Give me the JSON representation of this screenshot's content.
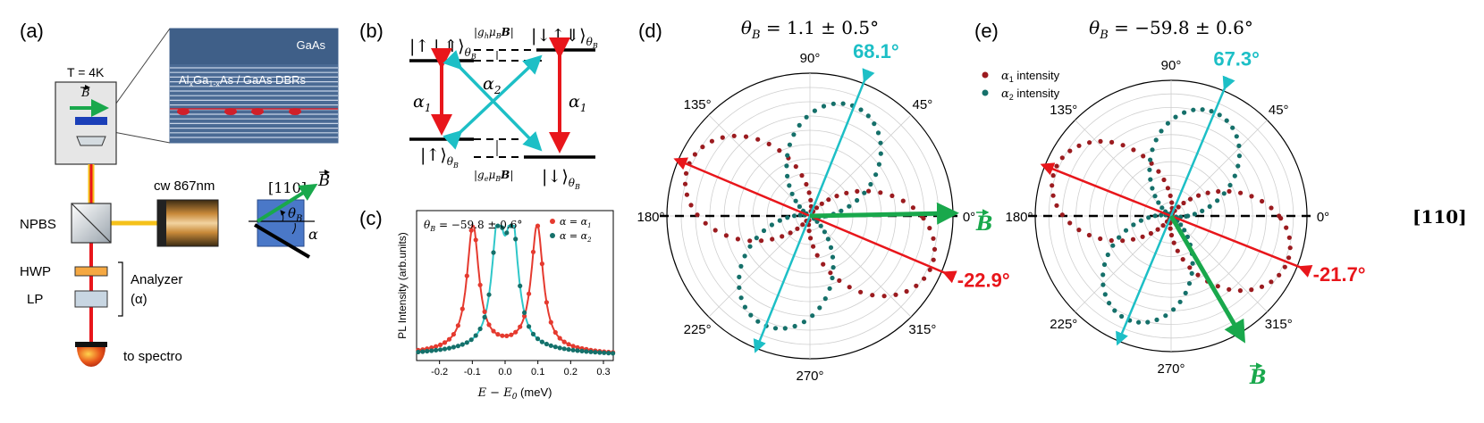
{
  "panels": {
    "a": {
      "label": "(a)",
      "temperature": "T = 4K",
      "b_vec": "B",
      "gaas": "GaAs",
      "dbr_label": "AlxGa1-xAs / GaAs DBRs",
      "dbr_al": "Al",
      "dbr_x": "x",
      "dbr_ga": "Ga",
      "dbr_sub": "1-x",
      "dbr_rest": "As / GaAs DBRs",
      "laser": "cw 867nm",
      "npbs": "NPBS",
      "hwp": "HWP",
      "lp": "LP",
      "analyzer": "Analyzer",
      "alpha_paren": "(α)",
      "spectro": "to spectro",
      "dir110": "[110]",
      "thetaB": "θ",
      "thetaB_sub": "B",
      "alpha": "α"
    },
    "b": {
      "label": "(b)",
      "state_top_left": "|↑↓⇑⟩",
      "state_top_right": "|↓↑⇓⟩",
      "state_bottom_left": "|↑⟩",
      "state_bottom_right": "|↓⟩",
      "theta_sub": "θ",
      "theta_sub_b": "B",
      "gh_label": "|g",
      "gh_sub": "h",
      "gh_rest": "μ",
      "mu_sub": "B",
      "ge_label": "|g",
      "ge_sub": "e",
      "alpha1": "α",
      "alpha1_sub": "1",
      "alpha2": "α",
      "alpha2_sub": "2"
    },
    "c": {
      "label": "(c)",
      "annotation": "θB = −59.8 ± 0.6°",
      "legend1": "α = α1",
      "legend2": "α = α2",
      "ylabel": "PL Intensity (arb.units)",
      "xlabel": "E − E0 (meV)",
      "xticks": [
        "-0.2",
        "-0.1",
        "0.0",
        "0.1",
        "0.2",
        "0.3"
      ]
    },
    "d": {
      "label": "(d)",
      "title": "θB = 1.1 ± 0.5°",
      "angle_cyan": "68.1°",
      "angle_red": "-22.9°",
      "b_label": "B",
      "legend1": "α1 intensity",
      "legend2": "α2 intensity"
    },
    "e": {
      "label": "(e)",
      "title": "θB = −59.8 ± 0.6°",
      "angle_cyan": "67.3°",
      "angle_red": "-21.7°",
      "b_label": "B",
      "dir110": "[110]"
    },
    "polar_ticks": [
      "0°",
      "45°",
      "90°",
      "135°",
      "180°",
      "225°",
      "270°",
      "315°"
    ]
  },
  "colors": {
    "red": "#e8161b",
    "cyan": "#1dbfc6",
    "darkred": "#9b1b1f",
    "teal": "#15706a",
    "green": "#19a84c",
    "dbr_blue": "#4a6a94",
    "spec_red": "#e53a2f",
    "spec_cyan": "#2fc7c9"
  },
  "chart_data": [
    {
      "type": "line",
      "panel": "c",
      "x_range": [
        -0.27,
        0.33
      ],
      "xlabel": "E − E0 (meV)",
      "ylabel": "PL Intensity (arb.units)",
      "series": [
        {
          "name": "α = α1",
          "peaks": [
            {
              "center": -0.098,
              "height": 1.0,
              "hwhm": 0.022
            },
            {
              "center": 0.098,
              "height": 1.0,
              "hwhm": 0.022
            }
          ],
          "baseline": 0.06
        },
        {
          "name": "α = α2",
          "peaks": [
            {
              "center": -0.022,
              "height": 0.93,
              "hwhm": 0.022
            },
            {
              "center": 0.022,
              "height": 0.93,
              "hwhm": 0.022
            }
          ],
          "baseline": 0.04
        }
      ]
    },
    {
      "type": "scatter",
      "panel": "d",
      "polar": true,
      "series": [
        {
          "name": "α1 intensity",
          "axis_deg": -22.9
        },
        {
          "name": "α2 intensity",
          "axis_deg": 68.1
        }
      ],
      "angle_ticks_deg": [
        0,
        45,
        90,
        135,
        180,
        225,
        270,
        315
      ]
    },
    {
      "type": "scatter",
      "panel": "e",
      "polar": true,
      "series": [
        {
          "name": "α1 intensity",
          "axis_deg": -21.7
        },
        {
          "name": "α2 intensity",
          "axis_deg": 67.3
        }
      ],
      "angle_ticks_deg": [
        0,
        45,
        90,
        135,
        180,
        225,
        270,
        315
      ]
    }
  ]
}
